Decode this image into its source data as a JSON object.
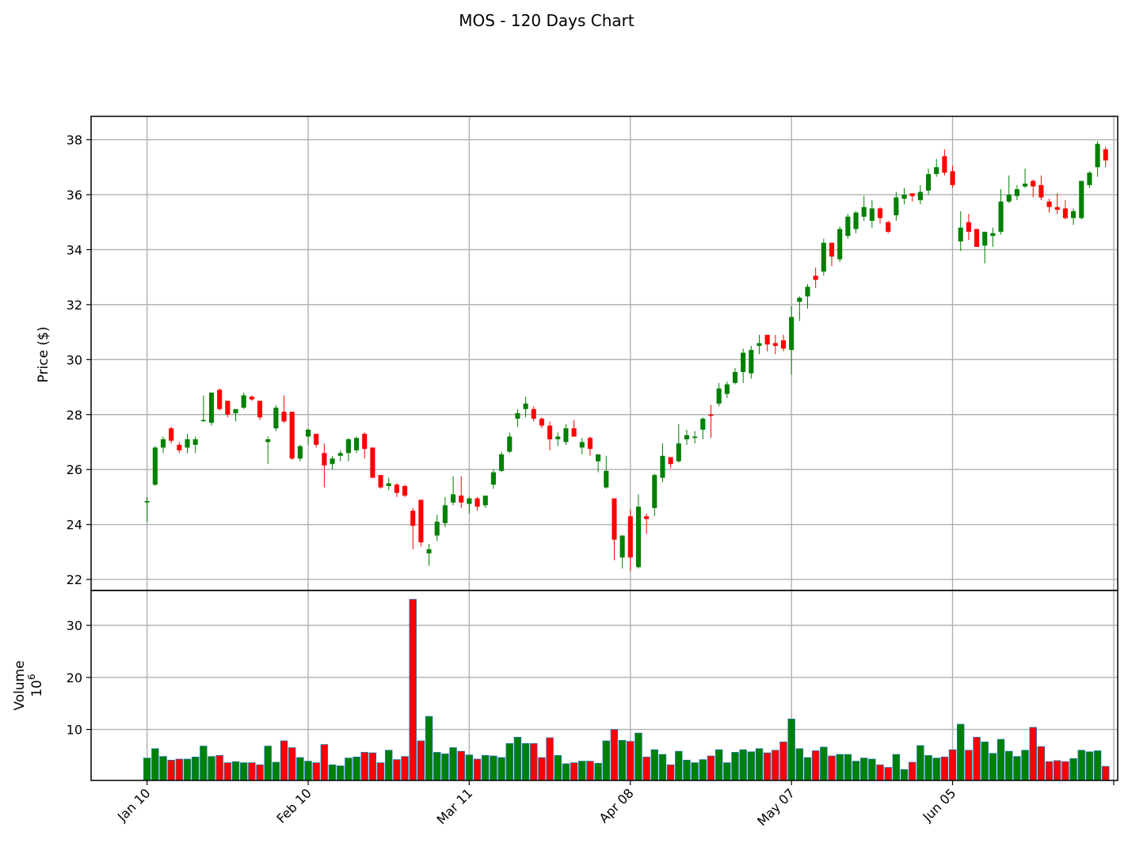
{
  "chart_data": {
    "type": "candlestick",
    "title": "MOS - 120 Days Chart",
    "price_panel": {
      "ylabel": "Price ($)",
      "ylim": [
        21.6,
        38.85
      ],
      "yticks": [
        22,
        24,
        26,
        28,
        30,
        32,
        34,
        36,
        38
      ],
      "grid": true
    },
    "volume_panel": {
      "ylabel": "Volume",
      "ylabel_multiplier": "10",
      "ylabel_exponent": "6",
      "ylim": [
        0.2,
        36.7
      ],
      "yticks": [
        10,
        20,
        30
      ],
      "grid": true
    },
    "xticks": [
      {
        "index": 0,
        "label": "Jan 10"
      },
      {
        "index": 20,
        "label": "Feb 10"
      },
      {
        "index": 40,
        "label": "Mar 11"
      },
      {
        "index": 60,
        "label": "Apr 08"
      },
      {
        "index": 80,
        "label": "May 07"
      },
      {
        "index": 100,
        "label": "Jun 05"
      }
    ],
    "x_index_range": [
      -6.95,
      120.5
    ],
    "up_color": "#008000",
    "down_color": "#ff0000",
    "volume_edge_color": "#1f77b4",
    "candles": [
      [
        24.8,
        25.0,
        24.1,
        24.85,
        4.5
      ],
      [
        25.45,
        26.85,
        25.4,
        26.8,
        6.3
      ],
      [
        26.8,
        27.2,
        26.6,
        27.1,
        4.8
      ],
      [
        27.5,
        27.55,
        26.95,
        27.05,
        4.1
      ],
      [
        26.9,
        27.0,
        26.6,
        26.7,
        4.3
      ],
      [
        26.8,
        27.3,
        26.6,
        27.1,
        4.3
      ],
      [
        26.9,
        27.2,
        26.6,
        27.1,
        4.7
      ],
      [
        27.8,
        28.7,
        27.75,
        27.8,
        6.8
      ],
      [
        27.7,
        28.8,
        27.6,
        28.8,
        4.8
      ],
      [
        28.9,
        28.95,
        28.15,
        28.2,
        5.0
      ],
      [
        28.5,
        28.5,
        27.9,
        28.0,
        3.6
      ],
      [
        28.05,
        28.2,
        27.75,
        28.2,
        3.8
      ],
      [
        28.25,
        28.8,
        28.2,
        28.7,
        3.6
      ],
      [
        28.65,
        28.7,
        28.5,
        28.55,
        3.6
      ],
      [
        28.5,
        28.5,
        27.8,
        27.9,
        3.2
      ],
      [
        27.0,
        27.2,
        26.2,
        27.1,
        6.8
      ],
      [
        27.5,
        28.35,
        27.4,
        28.25,
        3.7
      ],
      [
        28.1,
        28.7,
        27.7,
        27.75,
        7.8
      ],
      [
        28.1,
        28.1,
        26.35,
        26.4,
        6.5
      ],
      [
        26.4,
        26.9,
        26.3,
        26.85,
        4.6
      ],
      [
        27.2,
        27.5,
        26.9,
        27.45,
        3.9
      ],
      [
        27.3,
        27.3,
        26.8,
        26.9,
        3.6
      ],
      [
        26.6,
        26.95,
        25.35,
        26.15,
        7.1
      ],
      [
        26.2,
        26.5,
        26.0,
        26.4,
        3.2
      ],
      [
        26.5,
        26.7,
        26.3,
        26.6,
        3.0
      ],
      [
        26.6,
        27.15,
        26.3,
        27.1,
        4.5
      ],
      [
        26.7,
        27.2,
        26.6,
        27.15,
        4.7
      ],
      [
        27.3,
        27.35,
        26.4,
        26.75,
        5.6
      ],
      [
        26.8,
        26.8,
        25.7,
        25.7,
        5.5
      ],
      [
        25.8,
        25.8,
        25.3,
        25.35,
        3.6
      ],
      [
        25.4,
        25.7,
        25.25,
        25.5,
        6.0
      ],
      [
        25.45,
        25.5,
        25.0,
        25.15,
        4.2
      ],
      [
        25.4,
        25.45,
        25.0,
        25.05,
        4.8
      ],
      [
        24.5,
        24.6,
        23.1,
        23.95,
        35.0
      ],
      [
        24.9,
        24.9,
        23.2,
        23.35,
        7.8
      ],
      [
        22.95,
        23.3,
        22.5,
        23.1,
        12.5
      ],
      [
        23.6,
        24.35,
        23.4,
        24.1,
        5.6
      ],
      [
        24.05,
        25.0,
        23.9,
        24.7,
        5.3
      ],
      [
        24.8,
        25.75,
        24.7,
        25.1,
        6.5
      ],
      [
        25.05,
        25.75,
        24.6,
        24.8,
        5.8
      ],
      [
        24.75,
        25.0,
        24.4,
        24.95,
        5.1
      ],
      [
        24.95,
        25.0,
        24.5,
        24.65,
        4.3
      ],
      [
        24.7,
        25.05,
        24.6,
        25.05,
        5.0
      ],
      [
        25.45,
        26.0,
        25.3,
        25.9,
        4.9
      ],
      [
        25.95,
        26.65,
        25.9,
        26.55,
        4.6
      ],
      [
        26.65,
        27.35,
        26.6,
        27.2,
        7.3
      ],
      [
        27.85,
        28.2,
        27.55,
        28.05,
        8.5
      ],
      [
        28.2,
        28.65,
        27.9,
        28.4,
        7.3
      ],
      [
        28.2,
        28.3,
        27.75,
        27.85,
        7.3
      ],
      [
        27.85,
        27.9,
        27.5,
        27.6,
        4.6
      ],
      [
        27.6,
        27.75,
        26.7,
        27.1,
        8.4
      ],
      [
        27.1,
        27.35,
        26.85,
        27.2,
        5.0
      ],
      [
        27.0,
        27.65,
        26.9,
        27.5,
        3.4
      ],
      [
        27.5,
        27.8,
        27.2,
        27.2,
        3.6
      ],
      [
        26.8,
        27.15,
        26.55,
        27.0,
        3.9
      ],
      [
        27.15,
        27.2,
        26.5,
        26.75,
        3.9
      ],
      [
        26.3,
        26.55,
        25.9,
        26.55,
        3.5
      ],
      [
        25.35,
        26.5,
        25.3,
        25.95,
        7.8
      ],
      [
        24.95,
        24.95,
        22.7,
        23.45,
        10.0
      ],
      [
        22.8,
        23.6,
        22.4,
        23.6,
        7.9
      ],
      [
        24.3,
        24.55,
        22.3,
        22.8,
        7.7
      ],
      [
        22.45,
        25.1,
        22.4,
        24.65,
        9.3
      ],
      [
        24.3,
        24.4,
        23.65,
        24.2,
        4.7
      ],
      [
        24.6,
        25.85,
        24.3,
        25.8,
        6.1
      ],
      [
        25.7,
        26.95,
        25.55,
        26.5,
        5.2
      ],
      [
        26.45,
        26.45,
        26.05,
        26.2,
        3.2
      ],
      [
        26.3,
        27.65,
        26.25,
        26.95,
        5.8
      ],
      [
        27.1,
        27.45,
        26.9,
        27.25,
        4.1
      ],
      [
        27.15,
        27.4,
        26.95,
        27.2,
        3.6
      ],
      [
        27.45,
        27.9,
        27.1,
        27.85,
        4.2
      ],
      [
        28.0,
        28.35,
        27.15,
        27.95,
        4.9
      ],
      [
        28.4,
        29.15,
        28.3,
        28.95,
        6.1
      ],
      [
        28.75,
        29.2,
        28.6,
        29.1,
        3.6
      ],
      [
        29.15,
        29.7,
        29.1,
        29.55,
        5.6
      ],
      [
        29.55,
        30.4,
        29.15,
        30.25,
        6.1
      ],
      [
        29.5,
        30.5,
        29.3,
        30.35,
        5.7
      ],
      [
        30.5,
        30.9,
        30.2,
        30.6,
        6.3
      ],
      [
        30.9,
        30.9,
        30.3,
        30.55,
        5.5
      ],
      [
        30.6,
        30.9,
        30.2,
        30.5,
        6.0
      ],
      [
        30.7,
        30.9,
        30.3,
        30.4,
        7.6
      ],
      [
        30.35,
        31.95,
        29.45,
        31.55,
        12.0
      ],
      [
        32.1,
        32.3,
        31.4,
        32.25,
        6.3
      ],
      [
        32.3,
        32.75,
        31.85,
        32.65,
        4.6
      ],
      [
        33.05,
        33.35,
        32.6,
        32.9,
        5.9
      ],
      [
        33.2,
        34.4,
        33.05,
        34.25,
        6.6
      ],
      [
        34.25,
        34.25,
        33.4,
        33.75,
        4.9
      ],
      [
        33.65,
        34.85,
        33.55,
        34.75,
        5.2
      ],
      [
        34.5,
        35.3,
        34.4,
        35.2,
        5.2
      ],
      [
        34.75,
        35.4,
        34.6,
        35.35,
        3.9
      ],
      [
        35.2,
        35.95,
        35.05,
        35.55,
        4.5
      ],
      [
        35.05,
        35.8,
        34.8,
        35.5,
        4.3
      ],
      [
        35.5,
        35.55,
        34.95,
        35.15,
        3.2
      ],
      [
        35.0,
        35.05,
        34.6,
        34.65,
        2.7
      ],
      [
        35.25,
        36.1,
        35.05,
        35.9,
        5.2
      ],
      [
        35.85,
        36.25,
        35.65,
        36.0,
        2.3
      ],
      [
        36.05,
        36.05,
        35.75,
        35.95,
        3.7
      ],
      [
        35.8,
        36.35,
        35.65,
        36.1,
        6.9
      ],
      [
        36.15,
        36.95,
        36.0,
        36.75,
        5.0
      ],
      [
        36.75,
        37.3,
        36.65,
        37.0,
        4.5
      ],
      [
        37.4,
        37.65,
        36.7,
        36.8,
        4.7
      ],
      [
        36.85,
        37.05,
        36.25,
        36.35,
        6.1
      ],
      [
        34.3,
        35.4,
        33.95,
        34.8,
        11.0
      ],
      [
        35.0,
        35.3,
        34.35,
        34.65,
        6.0
      ],
      [
        34.75,
        34.75,
        34.1,
        34.1,
        8.5
      ],
      [
        34.15,
        34.65,
        33.5,
        34.65,
        7.6
      ],
      [
        34.5,
        34.8,
        34.1,
        34.6,
        5.4
      ],
      [
        34.65,
        36.2,
        34.55,
        35.75,
        8.1
      ],
      [
        35.75,
        36.7,
        35.7,
        36.0,
        5.8
      ],
      [
        35.95,
        36.35,
        35.8,
        36.2,
        4.8
      ],
      [
        36.3,
        36.95,
        36.25,
        36.4,
        6.0
      ],
      [
        36.5,
        36.55,
        35.9,
        36.3,
        10.4
      ],
      [
        36.35,
        36.7,
        35.8,
        35.9,
        6.7
      ],
      [
        35.75,
        35.85,
        35.35,
        35.55,
        3.8
      ],
      [
        35.55,
        36.05,
        35.3,
        35.45,
        4.0
      ],
      [
        35.5,
        35.8,
        35.1,
        35.15,
        3.8
      ],
      [
        35.15,
        35.5,
        34.9,
        35.4,
        4.4
      ],
      [
        35.15,
        36.5,
        35.1,
        36.5,
        6.0
      ],
      [
        36.35,
        36.85,
        36.25,
        36.8,
        5.7
      ],
      [
        37.0,
        37.95,
        36.65,
        37.85,
        5.9
      ],
      [
        37.65,
        37.75,
        37.0,
        37.25,
        2.9
      ]
    ]
  }
}
